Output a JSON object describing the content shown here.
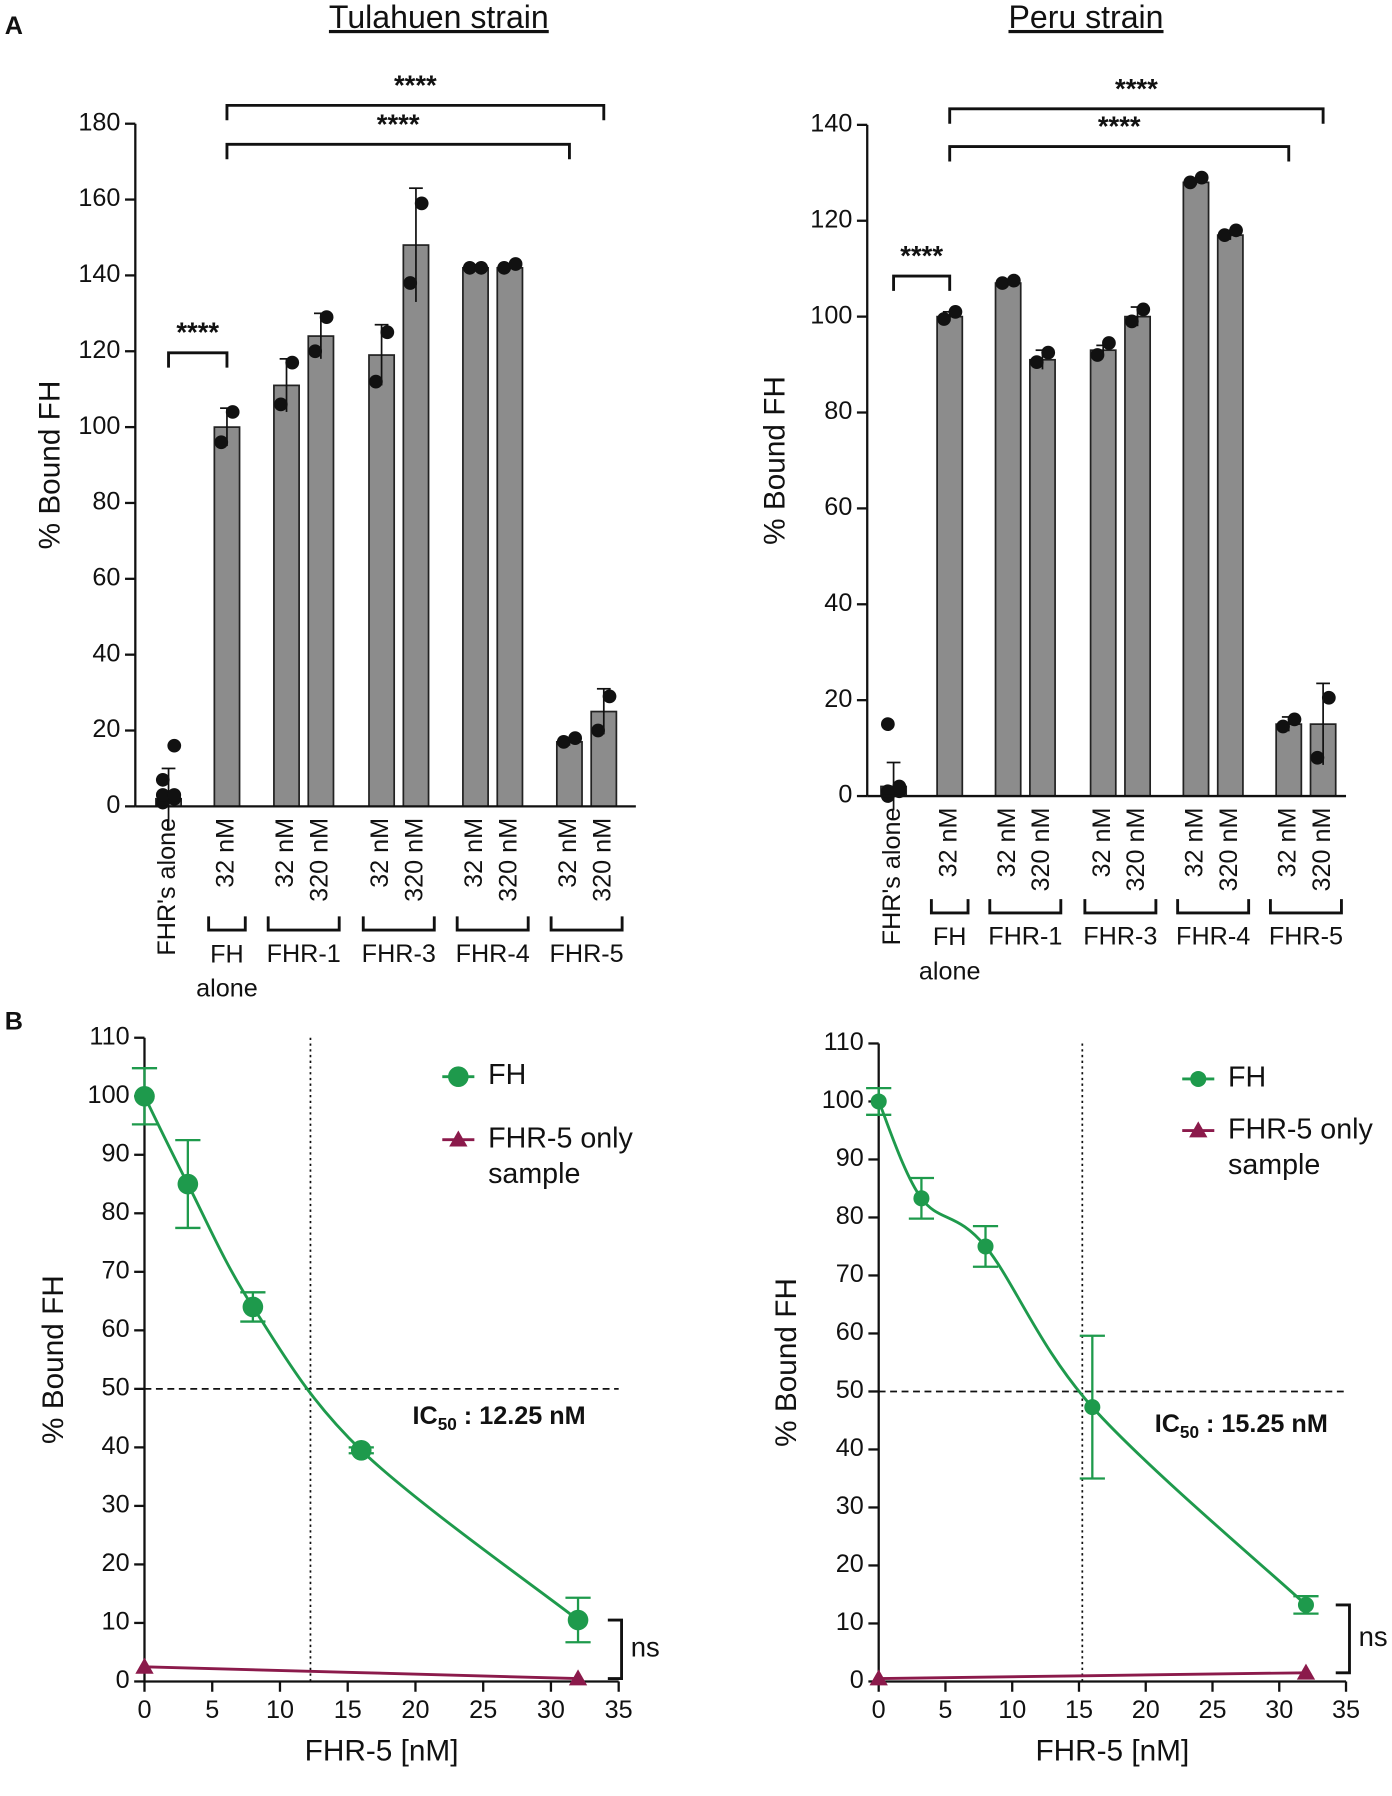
{
  "panel_labels": [
    "A",
    "B"
  ],
  "chart_data": [
    {
      "type": "bar",
      "title": "Tulahuen strain",
      "y_label": "% Bound FH",
      "color": "#8c8c8c",
      "ylim": [
        0,
        180
      ],
      "yticks": [
        0,
        20,
        40,
        60,
        80,
        100,
        120,
        140,
        160,
        180
      ],
      "groups": [
        {
          "label": null,
          "categories": [
            "FHR's alone"
          ],
          "values": [
            2
          ],
          "errors": [
            8
          ],
          "points": [
            [
              1,
              2,
              3,
              3,
              7,
              16
            ]
          ]
        },
        {
          "label": "FH alone",
          "categories": [
            "32 nM"
          ],
          "values": [
            100
          ],
          "errors": [
            5
          ],
          "points": [
            [
              96,
              104
            ]
          ]
        },
        {
          "label": "FHR-1",
          "categories": [
            "32 nM",
            "320 nM"
          ],
          "values": [
            111,
            124
          ],
          "errors": [
            7,
            6
          ],
          "points": [
            [
              106,
              117
            ],
            [
              120,
              129
            ]
          ]
        },
        {
          "label": "FHR-3",
          "categories": [
            "32 nM",
            "320 nM"
          ],
          "values": [
            119,
            148
          ],
          "errors": [
            8,
            15
          ],
          "points": [
            [
              112,
              125
            ],
            [
              138,
              159
            ]
          ]
        },
        {
          "label": "FHR-4",
          "categories": [
            "32 nM",
            "320 nM"
          ],
          "values": [
            142,
            142
          ],
          "errors": [
            0.3,
            0.5
          ],
          "points": [
            [
              142,
              142
            ],
            [
              142,
              143
            ]
          ]
        },
        {
          "label": "FHR-5",
          "categories": [
            "32 nM",
            "320 nM"
          ],
          "values": [
            17,
            25
          ],
          "errors": [
            1,
            6
          ],
          "points": [
            [
              17,
              18
            ],
            [
              20,
              29
            ]
          ]
        }
      ],
      "comparisons": [
        "****",
        "****",
        "****"
      ]
    },
    {
      "type": "bar",
      "title": "Peru strain",
      "y_label": "% Bound FH",
      "color": "#8c8c8c",
      "ylim": [
        0,
        140
      ],
      "yticks": [
        0,
        20,
        40,
        60,
        80,
        100,
        120,
        140
      ],
      "groups": [
        {
          "label": null,
          "categories": [
            "FHR's alone"
          ],
          "values": [
            2
          ],
          "errors": [
            5
          ],
          "points": [
            [
              0,
              1,
              1,
              2,
              15
            ]
          ]
        },
        {
          "label": "FH alone",
          "categories": [
            "32 nM"
          ],
          "values": [
            100
          ],
          "errors": [
            1
          ],
          "points": [
            [
              99.5,
              101
            ]
          ]
        },
        {
          "label": "FHR-1",
          "categories": [
            "32 nM",
            "320 nM"
          ],
          "values": [
            107,
            91
          ],
          "errors": [
            0.5,
            2
          ],
          "points": [
            [
              107,
              107.5
            ],
            [
              90.5,
              92.5
            ]
          ]
        },
        {
          "label": "FHR-3",
          "categories": [
            "32 nM",
            "320 nM"
          ],
          "values": [
            93,
            100
          ],
          "errors": [
            1,
            2
          ],
          "points": [
            [
              92,
              94.5
            ],
            [
              99,
              101.5
            ]
          ]
        },
        {
          "label": "FHR-4",
          "categories": [
            "32 nM",
            "320 nM"
          ],
          "values": [
            128,
            117
          ],
          "errors": [
            0.5,
            1
          ],
          "points": [
            [
              128,
              129
            ],
            [
              117,
              118
            ]
          ]
        },
        {
          "label": "FHR-5",
          "categories": [
            "32 nM",
            "320 nM"
          ],
          "values": [
            15,
            15
          ],
          "errors": [
            1.5,
            8.5
          ],
          "points": [
            [
              14.5,
              16
            ],
            [
              8,
              20.5
            ]
          ]
        }
      ],
      "comparisons": [
        "****",
        "****",
        "****"
      ]
    },
    {
      "type": "line",
      "x_label": "FHR-5 [nM]",
      "y_label": "% Bound FH",
      "xlim": [
        0,
        35
      ],
      "xticks": [
        0,
        5,
        10,
        15,
        20,
        25,
        30,
        35
      ],
      "ylim": [
        0,
        110
      ],
      "yticks": [
        0,
        10,
        20,
        30,
        40,
        50,
        60,
        70,
        80,
        90,
        100,
        110
      ],
      "series": [
        {
          "name": "FH",
          "color": "#1e9a4c",
          "marker": "circle",
          "x": [
            0,
            3.2,
            8,
            16,
            32
          ],
          "values": [
            100,
            85,
            64,
            39.5,
            10.5
          ],
          "errors": [
            4.8,
            7.5,
            2.5,
            0.5,
            3.8
          ]
        },
        {
          "name": "FHR-5 only sample",
          "color": "#8b1a4b",
          "marker": "triangle",
          "x": [
            0,
            32
          ],
          "values": [
            2.5,
            0.5
          ]
        }
      ],
      "reference_lines": {
        "x": 12.25,
        "y": 50
      },
      "annotation": [
        "IC",
        "50",
        " : 12.25 nM"
      ],
      "significance": "ns"
    },
    {
      "type": "line",
      "x_label": "FHR-5 [nM]",
      "y_label": "% Bound FH",
      "xlim": [
        0,
        35
      ],
      "xticks": [
        0,
        5,
        10,
        15,
        20,
        25,
        30,
        35
      ],
      "ylim": [
        0,
        110
      ],
      "yticks": [
        0,
        10,
        20,
        30,
        40,
        50,
        60,
        70,
        80,
        90,
        100,
        110
      ],
      "series": [
        {
          "name": "FH",
          "color": "#1e9a4c",
          "marker": "circle",
          "x": [
            0,
            3.2,
            8,
            16,
            32
          ],
          "values": [
            100,
            83.3,
            75,
            47.3,
            13.2
          ],
          "errors": [
            2.3,
            3.5,
            3.5,
            12.3,
            1.5
          ]
        },
        {
          "name": "FHR-5 only sample",
          "color": "#8b1a4b",
          "marker": "triangle",
          "x": [
            0,
            32
          ],
          "values": [
            0.5,
            1.5
          ]
        }
      ],
      "reference_lines": {
        "x": 15.25,
        "y": 50
      },
      "annotation": [
        "IC",
        "50",
        " : 15.25 nM"
      ],
      "significance": "ns"
    }
  ]
}
